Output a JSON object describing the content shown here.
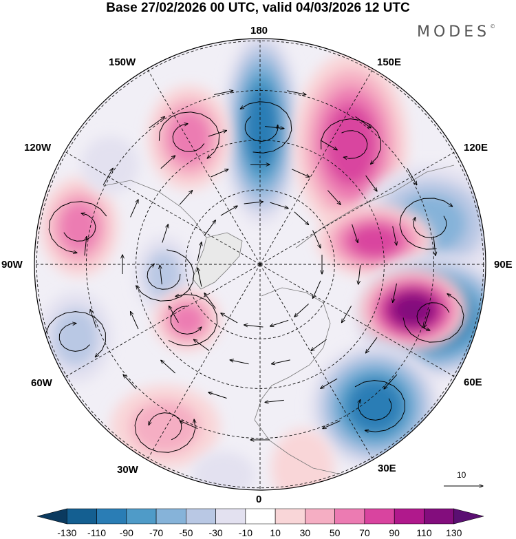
{
  "title": "Base 27/02/2026 00 UTC, valid 04/03/2026 12 UTC",
  "brand": "MODES",
  "brand_mark": "©",
  "longitude_labels": {
    "lon180": "180",
    "lon150e": "150E",
    "lon120e": "120E",
    "lon90e": "90E",
    "lon60e": "60E",
    "lon30e": "30E",
    "lon0": "0",
    "lon30w": "30W",
    "lon60w": "60W",
    "lon90w": "90W",
    "lon120w": "120W",
    "lon150w": "150W"
  },
  "reference_vector": {
    "value": "10"
  },
  "colorbar": {
    "labels": [
      "-130",
      "-110",
      "-90",
      "-70",
      "-50",
      "-30",
      "-10",
      "10",
      "30",
      "50",
      "70",
      "90",
      "110",
      "130"
    ],
    "colors": [
      "#0b3a5f",
      "#145f91",
      "#2a7db5",
      "#4f9bc8",
      "#86b3d9",
      "#b9c8e4",
      "#e3e1f0",
      "#ffffff",
      "#f9d6d8",
      "#f5aec3",
      "#ec7bb2",
      "#d9449f",
      "#b0198c",
      "#830d7d",
      "#5a0f72"
    ]
  },
  "anomaly_centers": [
    {
      "sign": "negative",
      "level": 5
    },
    {
      "sign": "positive",
      "level": 4
    },
    {
      "sign": "negative",
      "level": 3
    },
    {
      "sign": "positive",
      "level": 4
    },
    {
      "sign": "negative",
      "level": 6
    },
    {
      "sign": "positive",
      "level": 6
    },
    {
      "sign": "negative",
      "level": 5
    },
    {
      "sign": "positive",
      "level": 3
    },
    {
      "sign": "positive",
      "level": 3
    },
    {
      "sign": "negative",
      "level": 2
    },
    {
      "sign": "positive",
      "level": 3
    },
    {
      "sign": "negative",
      "level": 2
    },
    {
      "sign": "positive",
      "level": 2
    },
    {
      "sign": "negative",
      "level": 1
    },
    {
      "sign": "negative",
      "level": 1
    },
    {
      "sign": "positive",
      "level": 1
    }
  ]
}
